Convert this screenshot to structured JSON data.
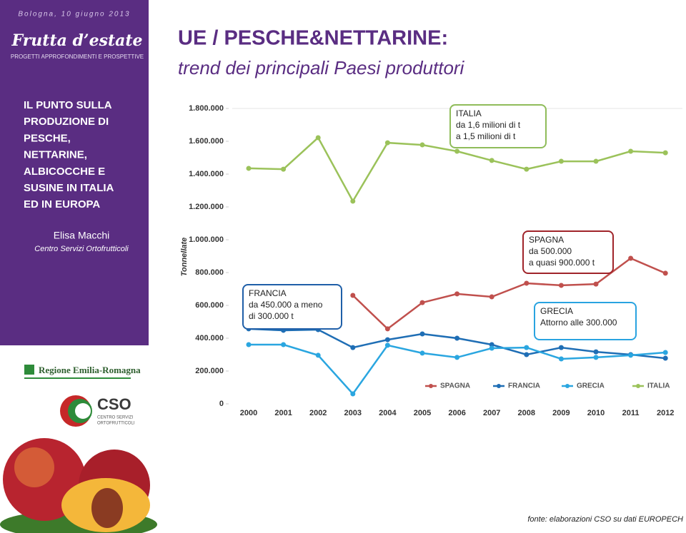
{
  "slide": {
    "date": "Bologna, 10 giugno 2013",
    "brand": "Frutta d’estate",
    "brand_tagline": "PROGETTI APPROFONDIMENTI E PROSPETTIVE",
    "section_title": [
      "IL PUNTO SULLA",
      "PRODUZIONE DI",
      "PESCHE,",
      "NETTARINE,",
      "ALBICOCCHE E",
      "SUSINE IN ITALIA",
      "ED IN EUROPA"
    ],
    "author": "Elisa Macchi",
    "author_org": "Centro Servizi Ortofrutticoli",
    "logo_region": "Regione Emilia-Romagna",
    "logo_cso": "CSO",
    "logo_cso_lines": [
      "CENTRO SERVIZI",
      "ORTOFRUTTICOLI"
    ],
    "title": "UE / PESCHE&NETTARINE:",
    "subtitle": "trend dei principali Paesi produttori",
    "source": "fonte: elaborazioni CSO su dati EUROPECH"
  },
  "chart_data": {
    "type": "line",
    "y_label": "Tonnellate",
    "categories": [
      "2000",
      "2001",
      "2002",
      "2003",
      "2004",
      "2005",
      "2006",
      "2007",
      "2008",
      "2009",
      "2010",
      "2011",
      "2012"
    ],
    "series": [
      {
        "name": "SPAGNA",
        "color": "#c0504d",
        "values": [
          null,
          null,
          null,
          661000,
          457000,
          617000,
          670000,
          652000,
          735000,
          722000,
          730000,
          887000,
          796000
        ]
      },
      {
        "name": "FRANCIA",
        "color": "#1f6eb5",
        "values": [
          457000,
          448000,
          452000,
          343000,
          391000,
          426000,
          400000,
          361000,
          300000,
          343000,
          317000,
          300000,
          278000
        ]
      },
      {
        "name": "GRECIA",
        "color": "#2aa6e0",
        "values": [
          361000,
          361000,
          296000,
          61000,
          357000,
          309000,
          283000,
          339000,
          343000,
          274000,
          283000,
          296000,
          313000
        ]
      },
      {
        "name": "ITALIA",
        "color": "#9bc25a",
        "values": [
          1435000,
          1430000,
          1622000,
          1235000,
          1591000,
          1578000,
          1539000,
          1483000,
          1430000,
          1478000,
          1478000,
          1539000,
          1530000
        ]
      }
    ],
    "ylim": [
      0,
      1800000
    ],
    "yticks": [
      0,
      {
        "value": 200000,
        "label": "200.000"
      },
      {
        "value": 400000,
        "label": "400.000"
      },
      {
        "value": 600000,
        "label": "600.000"
      },
      {
        "value": 800000,
        "label": "800.000"
      },
      {
        "value": 1000000,
        "label": "1.000.000"
      },
      {
        "value": 1200000,
        "label": "1.200.000"
      },
      {
        "value": 1400000,
        "label": "1.400.000"
      },
      {
        "value": 1600000,
        "label": "1.600.000"
      },
      {
        "value": 1800000,
        "label": "1.800.000"
      }
    ],
    "grid": false,
    "legend": "bottom",
    "annotations": [
      {
        "lines": [
          "ITALIA",
          "da 1,6 milioni di t",
          "a 1,5 milioni di t"
        ],
        "color": "#8fbc5a"
      },
      {
        "lines": [
          "SPAGNA",
          "da 500.000",
          "a quasi 900.000 t"
        ],
        "color": "#a0242a"
      },
      {
        "lines": [
          "FRANCIA",
          "da 450.000 a meno",
          "di 300.000 t"
        ],
        "color": "#1f5fa8"
      },
      {
        "lines": [
          "GRECIA",
          "Attorno alle 300.000"
        ],
        "color": "#29a3e0"
      }
    ]
  }
}
